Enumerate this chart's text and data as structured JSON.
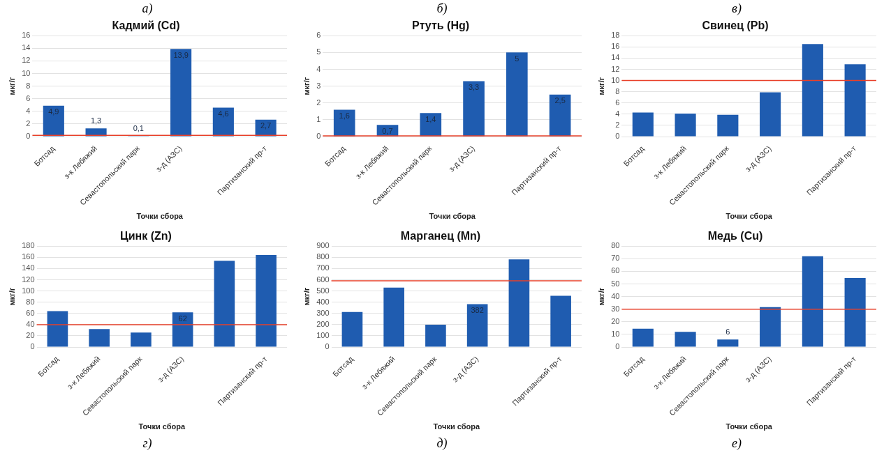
{
  "chart_data": [
    {
      "type": "bar",
      "title": "Кадмий (Cd)",
      "xlabel": "Точки сбора",
      "ylabel": "мкг/г",
      "annotations": [
        "а)"
      ],
      "categories": [
        "Ботсад",
        "з-к Лебяжий",
        "Севастопольский парк",
        "з-д (АЗС)",
        null,
        "Партизанский пр-т"
      ],
      "values": [
        4.9,
        1.3,
        0.1,
        13.9,
        4.6,
        2.7
      ],
      "value_labels": [
        "4,9",
        "1,3",
        "0,1",
        "13,9",
        "4,6",
        "2,7"
      ],
      "color": "#1f5cb0",
      "ylim": [
        0,
        16
      ],
      "yticks": [
        0,
        2,
        4,
        6,
        8,
        10,
        12,
        14,
        16
      ],
      "grid": "y",
      "legend": false,
      "ref_lines": [
        {
          "axis": "y",
          "value": 0.2,
          "color": "#e8402a"
        }
      ]
    },
    {
      "type": "bar",
      "title": "Ртуть (Hg)",
      "xlabel": "Точки сбора",
      "ylabel": "мкг/г",
      "annotations": [
        "б)"
      ],
      "categories": [
        "Ботсад",
        "з-к Лебяжий",
        "Севастопольский парк",
        "з-д (АЗС)",
        null,
        "Партизанский пр-т"
      ],
      "values": [
        1.6,
        0.7,
        1.4,
        3.3,
        5,
        2.5
      ],
      "value_labels": [
        "1,6",
        "0,7",
        "1,4",
        "3,3",
        "5",
        "2,5"
      ],
      "color": "#1f5cb0",
      "ylim": [
        0,
        6
      ],
      "yticks": [
        0,
        1,
        2,
        3,
        4,
        5,
        6
      ],
      "grid": "y",
      "legend": false,
      "ref_lines": [
        {
          "axis": "y",
          "value": 0.05,
          "color": "#e8402a"
        }
      ]
    },
    {
      "type": "bar",
      "title": "Свинец (Pb)",
      "xlabel": "Точки сбора",
      "ylabel": "мкг/г",
      "annotations": [
        "в)"
      ],
      "categories": [
        "Ботсад",
        "з-к Лебяжий",
        "Севастопольский парк",
        "з-д (АЗС)",
        null,
        "Партизанский пр-т"
      ],
      "values": [
        4.3,
        4.1,
        3.9,
        7.9,
        16.5,
        12.9
      ],
      "color": "#1f5cb0",
      "ylim": [
        0,
        18
      ],
      "yticks": [
        0,
        2,
        4,
        6,
        8,
        10,
        12,
        14,
        16,
        18
      ],
      "grid": "y",
      "legend": false,
      "ref_lines": [
        {
          "axis": "y",
          "value": 10,
          "color": "#e8402a"
        }
      ]
    },
    {
      "type": "bar",
      "title": "Цинк (Zn)",
      "xlabel": "Точки сбора",
      "ylabel": "мкг/г",
      "annotations": [
        "г)"
      ],
      "categories": [
        "Ботсад",
        "з-к Лебяжий",
        "Севастопольский парк",
        "з-д (АЗС)",
        null,
        "Партизанский пр-т"
      ],
      "values": [
        64,
        32,
        26,
        62,
        154,
        164
      ],
      "value_labels": [
        null,
        null,
        null,
        "62",
        null,
        null
      ],
      "color": "#1f5cb0",
      "ylim": [
        0,
        180
      ],
      "yticks": [
        0,
        20,
        40,
        60,
        80,
        100,
        120,
        140,
        160,
        180
      ],
      "grid": "y",
      "legend": false,
      "ref_lines": [
        {
          "axis": "y",
          "value": 40,
          "color": "#e8402a"
        }
      ]
    },
    {
      "type": "bar",
      "title": "Марганец (Mn)",
      "xlabel": "Точки сбора",
      "ylabel": "мкг/г",
      "annotations": [
        "д)"
      ],
      "categories": [
        "Ботсад",
        "з-к Лебяжий",
        "Севастопольский парк",
        "з-д (АЗС)",
        null,
        "Партизанский пр-т"
      ],
      "values": [
        312,
        530,
        200,
        382,
        782,
        457
      ],
      "value_labels": [
        null,
        null,
        null,
        "382",
        null,
        null
      ],
      "color": "#1f5cb0",
      "ylim": [
        0,
        900
      ],
      "yticks": [
        0,
        100,
        200,
        300,
        400,
        500,
        600,
        700,
        800,
        900
      ],
      "grid": "y",
      "legend": false,
      "ref_lines": [
        {
          "axis": "y",
          "value": 590,
          "color": "#e8402a"
        }
      ]
    },
    {
      "type": "bar",
      "title": "Медь (Cu)",
      "xlabel": "Точки сбора",
      "ylabel": "мкг/г",
      "annotations": [
        "е)"
      ],
      "categories": [
        "Ботсад",
        "з-к Лебяжий",
        "Севастопольский парк",
        "з-д (АЗС)",
        null,
        "Партизанский пр-т"
      ],
      "values": [
        14.6,
        12,
        6,
        31.6,
        71.9,
        54.7
      ],
      "value_labels": [
        null,
        null,
        "6",
        null,
        null,
        null
      ],
      "color": "#1f5cb0",
      "ylim": [
        0,
        80
      ],
      "yticks": [
        0,
        10,
        20,
        30,
        40,
        50,
        60,
        70,
        80
      ],
      "grid": "y",
      "legend": false,
      "ref_lines": [
        {
          "axis": "y",
          "value": 30,
          "color": "#e8402a"
        }
      ]
    }
  ]
}
